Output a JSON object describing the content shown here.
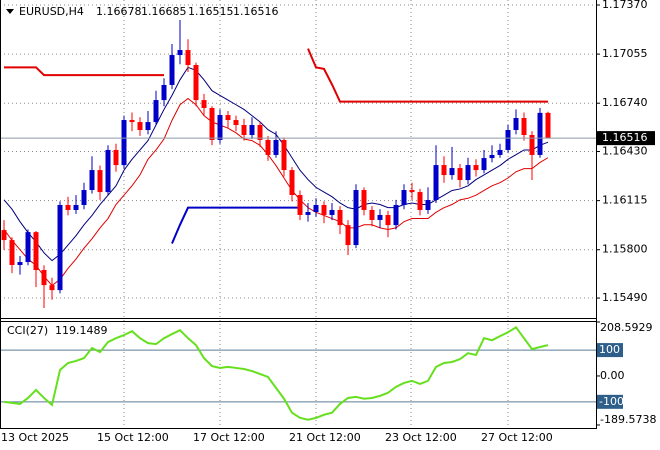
{
  "chart_data": [
    {
      "type": "candlestick",
      "symbol": "EURUSD,H4",
      "categories": [
        "13 Oct 2025",
        null,
        null,
        null,
        null,
        null,
        null,
        null,
        null,
        null,
        null,
        null,
        "15 Oct 12:00",
        null,
        null,
        null,
        null,
        null,
        null,
        null,
        null,
        null,
        null,
        null,
        "17 Oct 12:00",
        null,
        null,
        null,
        null,
        null,
        null,
        null,
        null,
        null,
        null,
        null,
        "21 Oct 12:00",
        null,
        null,
        null,
        null,
        null,
        null,
        null,
        null,
        null,
        null,
        null,
        "23 Oct 12:00",
        null,
        null,
        null,
        null,
        null,
        null,
        null,
        null,
        null,
        null,
        null,
        "27 Oct 12:00",
        null,
        null,
        null,
        null,
        null,
        null,
        null,
        null
      ],
      "open": [
        1.15926,
        1.15862,
        1.15702,
        1.15721,
        1.15913,
        1.1567,
        1.15573,
        1.15541,
        1.16087,
        1.16055,
        1.16087,
        1.16183,
        1.16311,
        1.1617,
        1.1644,
        1.16343,
        1.16632,
        1.16619,
        1.16568,
        1.16619,
        1.1676,
        1.16857,
        1.17049,
        1.17081,
        1.16985,
        1.1676,
        1.16709,
        1.16504,
        1.16664,
        1.16632,
        1.166,
        1.16536,
        1.166,
        1.16504,
        1.16408,
        1.16504,
        1.16311,
        1.16151,
        1.16023,
        1.16042,
        1.16087,
        1.16023,
        1.16055,
        1.15958,
        1.1583,
        1.16183,
        1.16055,
        1.15991,
        1.16023,
        1.15958,
        1.16087,
        1.16183,
        1.1617,
        1.16055,
        1.16119,
        1.16343,
        1.16279,
        1.16324,
        1.16247,
        1.16343,
        1.16311,
        1.16388,
        1.16408,
        1.1644,
        1.16568,
        1.16645,
        1.16536,
        1.16408,
        1.16678
      ],
      "high": [
        1.1599,
        1.1588,
        1.1576,
        1.1593,
        1.1592,
        1.157,
        1.1562,
        1.1611,
        1.1614,
        1.1615,
        1.1623,
        1.164,
        1.1634,
        1.1647,
        1.1648,
        1.1666,
        1.1668,
        1.1665,
        1.1669,
        1.1682,
        1.169,
        1.1712,
        1.17274,
        1.1715,
        1.17,
        1.168,
        1.1672,
        1.167,
        1.1669,
        1.1666,
        1.1664,
        1.1665,
        1.1662,
        1.1653,
        1.1656,
        1.1652,
        1.1633,
        1.1618,
        1.161,
        1.1613,
        1.1611,
        1.161,
        1.1608,
        1.1599,
        1.1622,
        1.162,
        1.1608,
        1.1606,
        1.1605,
        1.1612,
        1.1622,
        1.1623,
        1.1619,
        1.162,
        1.1647,
        1.164,
        1.1646,
        1.1635,
        1.1639,
        1.1638,
        1.1644,
        1.1647,
        1.1648,
        1.166,
        1.167,
        1.1668,
        1.1656,
        1.1671,
        1.16685
      ],
      "low": [
        1.158,
        1.1565,
        1.1564,
        1.157,
        1.1556,
        1.15426,
        1.1548,
        1.1552,
        1.1602,
        1.1603,
        1.1606,
        1.1616,
        1.1612,
        1.1615,
        1.163,
        1.1632,
        1.1656,
        1.1653,
        1.1654,
        1.166,
        1.1672,
        1.1683,
        1.1699,
        1.1694,
        1.1672,
        1.1666,
        1.1647,
        1.1648,
        1.1658,
        1.1656,
        1.165,
        1.1651,
        1.1646,
        1.1637,
        1.1639,
        1.1627,
        1.1611,
        1.1599,
        1.1598,
        1.1601,
        1.1597,
        1.1599,
        1.159,
        1.15766,
        1.1581,
        1.1602,
        1.1595,
        1.1594,
        1.1588,
        1.1593,
        1.1606,
        1.1612,
        1.1602,
        1.1603,
        1.161,
        1.1623,
        1.1625,
        1.162,
        1.1622,
        1.1627,
        1.1629,
        1.1636,
        1.1639,
        1.1642,
        1.1654,
        1.165,
        1.16247,
        1.1639,
        1.16515
      ],
      "close": [
        1.15862,
        1.15702,
        1.15721,
        1.15913,
        1.1567,
        1.15573,
        1.15541,
        1.16087,
        1.16055,
        1.16087,
        1.16183,
        1.16311,
        1.1617,
        1.1644,
        1.16343,
        1.16632,
        1.16619,
        1.16568,
        1.16619,
        1.1676,
        1.16857,
        1.17049,
        1.17081,
        1.16985,
        1.1676,
        1.16709,
        1.16504,
        1.16664,
        1.16632,
        1.166,
        1.16536,
        1.166,
        1.16504,
        1.16408,
        1.16504,
        1.16311,
        1.16151,
        1.16023,
        1.16042,
        1.16087,
        1.16023,
        1.16055,
        1.15958,
        1.1583,
        1.16183,
        1.16055,
        1.15991,
        1.16023,
        1.15958,
        1.16087,
        1.16183,
        1.1617,
        1.16055,
        1.16119,
        1.16343,
        1.16279,
        1.16324,
        1.16247,
        1.16343,
        1.16311,
        1.16388,
        1.16408,
        1.1644,
        1.16568,
        1.16645,
        1.16536,
        1.16408,
        1.16678,
        1.16516
      ],
      "up_color": "#0000c8",
      "down_color": "#ff0000",
      "lines": [
        {
          "color": "#00007a",
          "width": 1,
          "values": [
            1.1612,
            1.1606,
            1.1598,
            1.1591,
            1.1585,
            1.1578,
            1.1573,
            1.1577,
            1.1583,
            1.1589,
            1.1596,
            1.1602,
            1.1609,
            1.1615,
            1.1621,
            1.1631,
            1.1638,
            1.1644,
            1.165,
            1.166,
            1.167,
            1.1679,
            1.1689,
            1.1697,
            1.1695,
            1.1689,
            1.1682,
            1.1679,
            1.1676,
            1.1673,
            1.167,
            1.1666,
            1.1662,
            1.1657,
            1.1654,
            1.1647,
            1.1639,
            1.1631,
            1.1625,
            1.162,
            1.1617,
            1.1614,
            1.161,
            1.1607,
            1.1606,
            1.1609,
            1.161,
            1.1609,
            1.1607,
            1.1607,
            1.1609,
            1.161,
            1.1609,
            1.1609,
            1.1612,
            1.1615,
            1.1618,
            1.1619,
            1.1621,
            1.1625,
            1.1628,
            1.1631,
            1.1634,
            1.1638,
            1.1641,
            1.1644,
            1.1644,
            1.1647,
            1.1649
          ]
        },
        {
          "color": "#e00000",
          "width": 1,
          "values": [
            1.1593,
            1.1586,
            1.158,
            1.1574,
            1.157,
            1.1563,
            1.1557,
            1.1561,
            1.1568,
            1.1574,
            1.1581,
            1.1587,
            1.1594,
            1.16,
            1.1609,
            1.1615,
            1.1621,
            1.1628,
            1.1638,
            1.1644,
            1.1651,
            1.1663,
            1.1673,
            1.1677,
            1.1673,
            1.1666,
            1.1662,
            1.166,
            1.1658,
            1.1655,
            1.1651,
            1.165,
            1.1647,
            1.1641,
            1.1634,
            1.1626,
            1.1618,
            1.1612,
            1.1607,
            1.1604,
            1.1602,
            1.16,
            1.1598,
            1.1594,
            1.1594,
            1.1596,
            1.1596,
            1.1594,
            1.1593,
            1.1594,
            1.1598,
            1.16,
            1.16,
            1.16,
            1.1604,
            1.1607,
            1.1609,
            1.1612,
            1.1613,
            1.1615,
            1.1618,
            1.1621,
            1.1623,
            1.1626,
            1.163,
            1.1632,
            1.1632,
            1.1636,
            1.1639
          ]
        },
        {
          "color": "#e00000",
          "width": 2,
          "values": [
            1.1697,
            1.1697,
            1.1697,
            1.1697,
            1.1697,
            1.1692,
            1.1692,
            1.1692,
            1.1692,
            1.1692,
            1.1692,
            1.1692,
            1.1692,
            1.1692,
            1.1692,
            1.1692,
            1.1692,
            1.1692,
            1.1692,
            1.1692,
            1.1692,
            null,
            null,
            null,
            null,
            null,
            null,
            null,
            null,
            null,
            null,
            null,
            null,
            null,
            null,
            null,
            null,
            null,
            1.1709,
            1.1697,
            1.1696,
            1.1686,
            1.1675,
            1.1675,
            1.1675,
            1.1675,
            1.1675,
            1.1675,
            1.1675,
            1.1675,
            1.1675,
            1.1675,
            1.1675,
            1.1675,
            1.1675,
            1.1675,
            1.1675,
            1.1675,
            1.1675,
            1.1675,
            1.1675,
            1.1675,
            1.1675,
            1.1675,
            1.1675,
            1.1675,
            1.1675,
            1.1675,
            1.1675
          ]
        },
        {
          "color": "#0000c8",
          "width": 2,
          "values": [
            null,
            null,
            null,
            null,
            null,
            null,
            null,
            null,
            null,
            null,
            null,
            null,
            null,
            null,
            null,
            null,
            null,
            null,
            null,
            null,
            null,
            1.1584,
            1.1596,
            1.1607,
            1.1607,
            1.1607,
            1.1607,
            1.1607,
            1.1607,
            1.1607,
            1.1607,
            1.1607,
            1.1607,
            1.1607,
            1.1607,
            1.1607,
            1.1607,
            1.1607,
            null,
            null,
            null,
            null,
            null,
            null,
            null,
            null,
            null,
            null,
            null,
            null,
            null,
            null,
            null,
            null,
            null,
            null,
            null,
            null,
            null,
            null,
            null,
            null,
            null,
            null,
            null,
            null,
            null,
            null,
            null
          ]
        }
      ],
      "ylim": [
        1.15362,
        1.17402
      ],
      "yticks": [
        {
          "value": 1.1737,
          "label": "1.17370"
        },
        {
          "value": 1.17055,
          "label": "1.17055"
        },
        {
          "value": 1.1674,
          "label": "1.16740"
        },
        {
          "value": 1.1643,
          "label": "1.16430"
        },
        {
          "value": 1.16115,
          "label": "1.16115"
        },
        {
          "value": 1.158,
          "label": "1.15800"
        },
        {
          "value": 1.1549,
          "label": "1.15490"
        }
      ],
      "grid": true
    },
    {
      "type": "line",
      "name": "CCI(27)",
      "color": "#66e01e",
      "values": [
        -100,
        -104,
        -108,
        -85,
        -54,
        -85,
        -112,
        23,
        50,
        58,
        69,
        108,
        92,
        131,
        146,
        158,
        173,
        146,
        127,
        123,
        146,
        162,
        177,
        146,
        119,
        69,
        38,
        31,
        35,
        31,
        27,
        19,
        8,
        -4,
        -46,
        -88,
        -142,
        -162,
        -169,
        -162,
        -150,
        -142,
        -108,
        -85,
        -81,
        -88,
        -85,
        -77,
        -65,
        -42,
        -27,
        -19,
        -31,
        -19,
        35,
        50,
        54,
        65,
        88,
        81,
        146,
        138,
        154,
        169,
        188,
        146,
        104,
        112,
        119.1489
      ],
      "ylim": [
        -189.5738,
        208.5929
      ],
      "yticks": [
        208.5929,
        100,
        {
          "value": 0,
          "label": "0.00"
        },
        -100,
        -189.5738
      ],
      "levels": [
        100,
        -100
      ]
    }
  ]
}
